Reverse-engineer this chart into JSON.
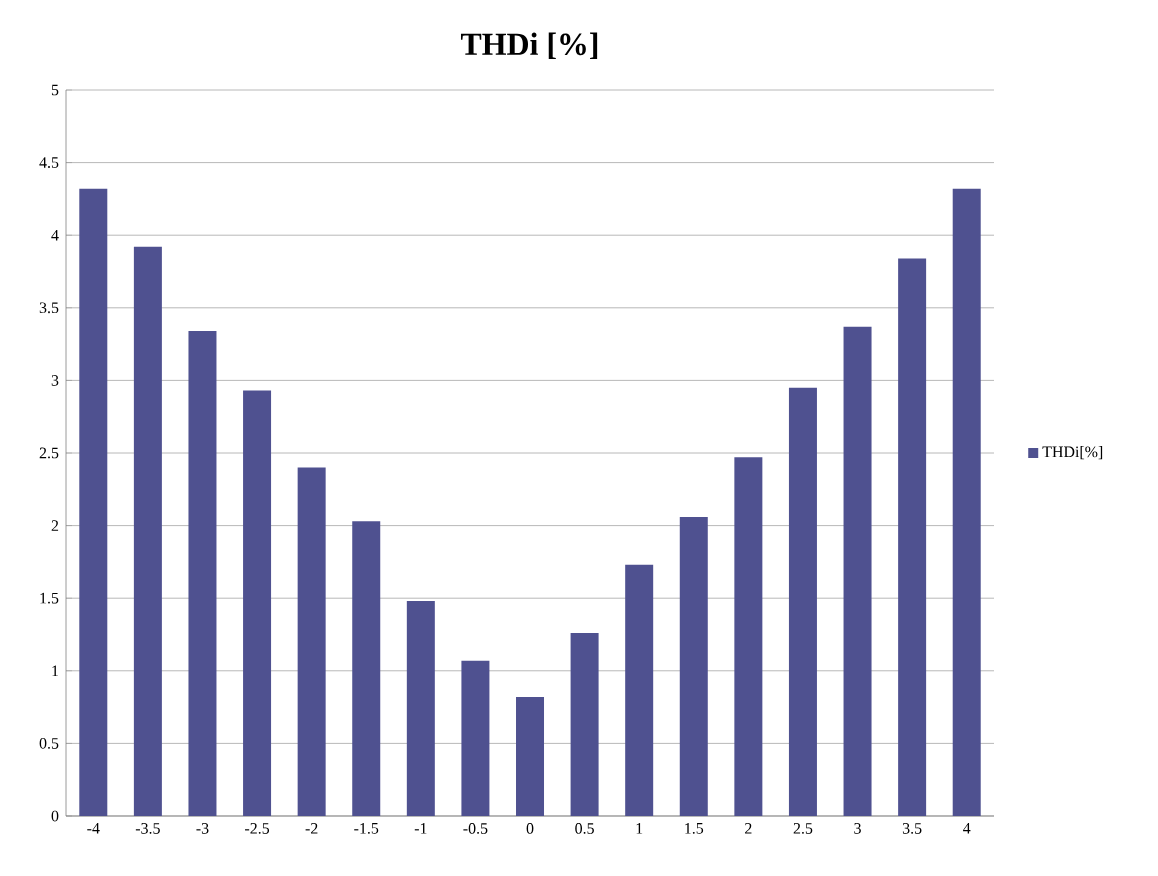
{
  "chart_data": {
    "type": "bar",
    "title": "THDi [%]",
    "categories": [
      "-4",
      "-3.5",
      "-3",
      "-2.5",
      "-2",
      "-1.5",
      "-1",
      "-0.5",
      "0",
      "0.5",
      "1",
      "1.5",
      "2",
      "2.5",
      "3",
      "3.5",
      "4"
    ],
    "series": [
      {
        "name": "THDi[%]",
        "color": "#4f5190",
        "values": [
          4.32,
          3.92,
          3.34,
          2.93,
          2.4,
          2.03,
          1.48,
          1.07,
          0.82,
          1.26,
          1.73,
          2.06,
          2.47,
          2.95,
          3.37,
          3.84,
          4.32
        ]
      }
    ],
    "ylim": [
      0,
      5
    ],
    "yticks": [
      0,
      0.5,
      1,
      1.5,
      2,
      2.5,
      3,
      3.5,
      4,
      4.5,
      5
    ],
    "grid": "y",
    "legend": "right"
  }
}
